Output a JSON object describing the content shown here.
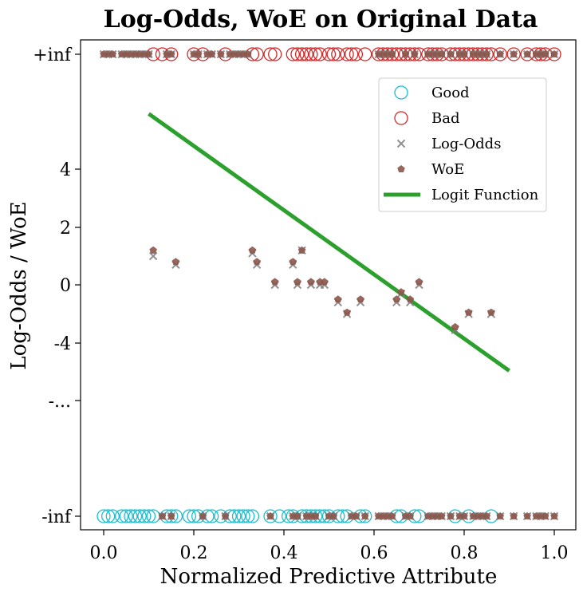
{
  "chart_data": {
    "type": "scatter",
    "title": "Log-Odds, WoE on Original Data",
    "xlabel": "Normalized Predictive Attribute",
    "ylabel": "Log-Odds / WoE",
    "xlim": [
      -0.05,
      1.05
    ],
    "x_ticks": [
      0.0,
      0.2,
      0.4,
      0.6,
      0.8,
      1.0
    ],
    "x_tick_labels": [
      "0.0",
      "0.2",
      "0.4",
      "0.6",
      "0.8",
      "1.0"
    ],
    "y_ticks": [
      {
        "label": "+inf",
        "value": "+inf"
      },
      {
        "label": "4",
        "value": 4
      },
      {
        "label": "2",
        "value": 2
      },
      {
        "label": "0",
        "value": 0
      },
      {
        "label": "-4",
        "value": -4
      },
      {
        "label": "-...",
        "value": "-..."
      },
      {
        "label": "-inf",
        "value": "-inf"
      }
    ],
    "legend": {
      "position": "upper-right",
      "entries": [
        {
          "label": "Good",
          "marker": "open-circle",
          "color": "#17becf"
        },
        {
          "label": "Bad",
          "marker": "open-circle",
          "color": "#d62728"
        },
        {
          "label": "Log-Odds",
          "marker": "x",
          "color": "#7f7f7f"
        },
        {
          "label": "WoE",
          "marker": "pentagon",
          "color": "#8c564b"
        },
        {
          "label": "Logit Function",
          "marker": "line",
          "color": "#2ca02c"
        }
      ]
    },
    "series": [
      {
        "name": "Good",
        "y": "-inf",
        "x": [
          0.0,
          0.01,
          0.02,
          0.04,
          0.05,
          0.06,
          0.07,
          0.08,
          0.09,
          0.1,
          0.11,
          0.14,
          0.15,
          0.16,
          0.19,
          0.2,
          0.21,
          0.23,
          0.24,
          0.26,
          0.28,
          0.29,
          0.3,
          0.31,
          0.32,
          0.33,
          0.37,
          0.39,
          0.41,
          0.42,
          0.44,
          0.45,
          0.46,
          0.47,
          0.48,
          0.49,
          0.5,
          0.52,
          0.53,
          0.54,
          0.57,
          0.58,
          0.65,
          0.66,
          0.69,
          0.7,
          0.78,
          0.81,
          0.86
        ]
      },
      {
        "name": "Bad",
        "y": "+inf",
        "x": [
          0.11,
          0.13,
          0.15,
          0.2,
          0.22,
          0.27,
          0.33,
          0.34,
          0.37,
          0.38,
          0.42,
          0.43,
          0.44,
          0.45,
          0.46,
          0.47,
          0.48,
          0.5,
          0.51,
          0.52,
          0.54,
          0.55,
          0.56,
          0.58,
          0.61,
          0.62,
          0.63,
          0.64,
          0.65,
          0.66,
          0.67,
          0.68,
          0.69,
          0.7,
          0.72,
          0.73,
          0.74,
          0.75,
          0.77,
          0.78,
          0.79,
          0.8,
          0.81,
          0.82,
          0.83,
          0.84,
          0.85,
          0.86,
          0.88,
          0.91,
          0.94,
          0.96,
          0.97,
          0.98,
          1.0
        ]
      },
      {
        "name": "Log-Odds",
        "x": [
          0.11,
          0.16,
          0.33,
          0.34,
          0.38,
          0.42,
          0.43,
          0.44,
          0.46,
          0.48,
          0.49,
          0.52,
          0.54,
          0.57,
          0.65,
          0.66,
          0.68,
          0.7,
          0.78,
          0.81,
          0.86
        ],
        "y": [
          1.0,
          0.7,
          1.1,
          0.7,
          0.0,
          0.7,
          0.0,
          1.2,
          0.0,
          0.0,
          0.0,
          -1.2,
          -2.0,
          -1.2,
          -1.2,
          -0.6,
          -1.2,
          0.0,
          -3.1,
          -2.0,
          -2.0
        ]
      },
      {
        "name": "WoE",
        "x": [
          0.11,
          0.16,
          0.33,
          0.34,
          0.38,
          0.42,
          0.43,
          0.44,
          0.46,
          0.48,
          0.49,
          0.52,
          0.54,
          0.57,
          0.65,
          0.66,
          0.68,
          0.7,
          0.78,
          0.81,
          0.86
        ],
        "y": [
          1.2,
          0.8,
          1.2,
          0.8,
          0.1,
          0.8,
          0.1,
          1.2,
          0.1,
          0.1,
          0.1,
          -1.0,
          -1.9,
          -1.0,
          -1.0,
          -0.5,
          -1.0,
          0.1,
          -2.9,
          -1.9,
          -1.9
        ]
      },
      {
        "name": "Logit Function",
        "x": [
          0.1,
          0.9
        ],
        "y": [
          5.9,
          -5.9
        ]
      }
    ],
    "log_odds_at_inf": [
      0.0,
      0.01,
      0.02,
      0.04,
      0.05,
      0.06,
      0.07,
      0.08,
      0.09,
      0.1,
      0.14,
      0.15,
      0.2,
      0.21,
      0.23,
      0.24,
      0.26,
      0.28,
      0.29,
      0.3,
      0.31,
      0.32,
      0.61,
      0.62,
      0.63,
      0.64,
      0.67,
      0.69,
      0.72,
      0.73,
      0.74,
      0.75,
      0.77,
      0.79,
      0.8,
      0.82,
      0.83,
      0.84,
      0.85,
      0.88,
      0.91,
      0.94,
      0.96,
      0.97,
      0.98,
      1.0
    ],
    "log_odds_at_neg_inf": [
      0.13,
      0.15,
      0.22,
      0.27,
      0.37,
      0.42,
      0.43,
      0.45,
      0.46,
      0.47,
      0.5,
      0.51,
      0.55,
      0.56,
      0.58,
      0.61,
      0.62,
      0.63,
      0.64,
      0.67,
      0.68,
      0.72,
      0.73,
      0.74,
      0.75,
      0.77,
      0.79,
      0.8,
      0.82,
      0.83,
      0.84,
      0.85,
      0.88,
      0.91,
      0.94,
      0.96,
      0.97,
      0.98,
      1.0
    ],
    "grid": false
  }
}
